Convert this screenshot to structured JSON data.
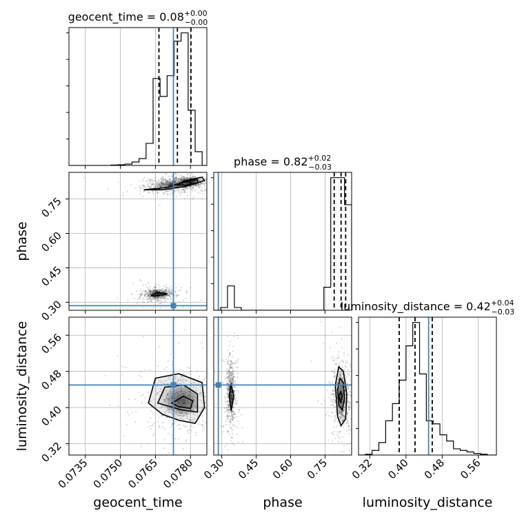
{
  "chart_data": {
    "type": "corner",
    "colors": {
      "truth": "#4682b4",
      "histogram": "#000000",
      "contour": "#000000",
      "grid": "#b0b0b0"
    },
    "parameters": [
      {
        "name": "geocent_time",
        "xlabel": "geocent_time",
        "title": {
          "prefix": "geocent_time = 0.08",
          "plus": "+0.00",
          "minus": "−0.00"
        },
        "range": [
          0.0728,
          0.0787
        ],
        "ticks": [
          0.0735,
          0.075,
          0.0765,
          0.078
        ],
        "tick_labels": [
          "0.0735",
          "0.0750",
          "0.0765",
          "0.0780"
        ],
        "truth": 0.07727,
        "quantiles": [
          0.07665,
          0.07744,
          0.07802
        ],
        "hist_edges": [
          0.0728,
          0.0731,
          0.0734,
          0.0737,
          0.074,
          0.0743,
          0.0746,
          0.0749,
          0.0752,
          0.0755,
          0.0758,
          0.0761,
          0.0764,
          0.0767,
          0.077,
          0.0773,
          0.0776,
          0.0779,
          0.0782,
          0.0785,
          0.0787
        ],
        "hist_counts": [
          0,
          0,
          0,
          0,
          0,
          0,
          0.3,
          0.5,
          1.0,
          2.5,
          5.0,
          16.0,
          63.0,
          50.0,
          65.0,
          90.0,
          96.0,
          40.0,
          10.0,
          0
        ]
      },
      {
        "name": "phase",
        "xlabel": "phase",
        "ylabel": "phase",
        "title": {
          "prefix": "phase = 0.82",
          "plus": "+0.02",
          "minus": "−0.03"
        },
        "range": [
          0.265,
          0.866
        ],
        "ticks": [
          0.3,
          0.45,
          0.6,
          0.75
        ],
        "tick_labels": [
          "0.30",
          "0.45",
          "0.60",
          "0.75"
        ],
        "truth": 0.285,
        "quantiles": [
          0.79,
          0.82,
          0.84
        ],
        "hist_edges": [
          0.265,
          0.295,
          0.325,
          0.355,
          0.385,
          0.415,
          0.445,
          0.475,
          0.505,
          0.535,
          0.565,
          0.595,
          0.625,
          0.655,
          0.685,
          0.715,
          0.745,
          0.775,
          0.805,
          0.835,
          0.866
        ],
        "hist_counts": [
          0,
          2,
          18,
          2,
          0,
          0,
          0,
          0,
          0,
          0,
          0,
          0,
          0,
          0,
          0,
          0,
          17,
          98,
          98,
          78
        ]
      },
      {
        "name": "luminosity_distance",
        "xlabel": "luminosity_distance",
        "ylabel": "luminosity_distance",
        "title": {
          "prefix": "luminosity_distance = 0.42",
          "plus": "+0.04",
          "minus": "−0.03"
        },
        "range": [
          0.295,
          0.6
        ],
        "ticks": [
          0.32,
          0.4,
          0.48,
          0.56
        ],
        "tick_labels": [
          "0.32",
          "0.40",
          "0.48",
          "0.56"
        ],
        "truth": 0.45,
        "quantiles": [
          0.385,
          0.42,
          0.458
        ],
        "hist_edges": [
          0.295,
          0.31,
          0.325,
          0.34,
          0.355,
          0.37,
          0.385,
          0.4,
          0.415,
          0.43,
          0.445,
          0.46,
          0.475,
          0.49,
          0.505,
          0.52,
          0.535,
          0.55,
          0.565,
          0.58,
          0.6
        ],
        "hist_counts": [
          0,
          0.5,
          3,
          8,
          22,
          33,
          48,
          70,
          85,
          52,
          22,
          20,
          13,
          9,
          4,
          3,
          2,
          1,
          0.5,
          0
        ]
      }
    ],
    "panels_2d": [
      {
        "x_param": "geocent_time",
        "y_param": "phase",
        "clusters": [
          {
            "cx": 0.0772,
            "cy": 0.81,
            "sx": 0.0006,
            "sy": 0.015
          },
          {
            "cx": 0.0779,
            "cy": 0.825,
            "sx": 0.0003,
            "sy": 0.01
          },
          {
            "cx": 0.0766,
            "cy": 0.335,
            "sx": 0.0003,
            "sy": 0.012
          }
        ],
        "contours": [
          [
            [
              0.076,
              0.79
            ],
            [
              0.077,
              0.8
            ],
            [
              0.078,
              0.835
            ],
            [
              0.0785,
              0.845
            ],
            [
              0.0786,
              0.83
            ],
            [
              0.0778,
              0.805
            ],
            [
              0.0768,
              0.79
            ],
            [
              0.076,
              0.79
            ]
          ],
          [
            [
              0.0774,
              0.812
            ],
            [
              0.0779,
              0.83
            ],
            [
              0.0783,
              0.835
            ],
            [
              0.0783,
              0.82
            ],
            [
              0.0778,
              0.81
            ],
            [
              0.0774,
              0.812
            ]
          ],
          [
            [
              0.0763,
              0.328
            ],
            [
              0.0766,
              0.343
            ],
            [
              0.077,
              0.337
            ],
            [
              0.0766,
              0.327
            ],
            [
              0.0763,
              0.328
            ]
          ]
        ]
      },
      {
        "x_param": "geocent_time",
        "y_param": "luminosity_distance",
        "clusters": [
          {
            "cx": 0.0776,
            "cy": 0.415,
            "sx": 0.0007,
            "sy": 0.035
          }
        ],
        "contours": [
          [
            [
              0.0762,
              0.41
            ],
            [
              0.0765,
              0.465
            ],
            [
              0.0775,
              0.475
            ],
            [
              0.0785,
              0.455
            ],
            [
              0.0786,
              0.4
            ],
            [
              0.0782,
              0.365
            ],
            [
              0.0775,
              0.372
            ],
            [
              0.0768,
              0.385
            ],
            [
              0.0762,
              0.41
            ]
          ],
          [
            [
              0.0766,
              0.41
            ],
            [
              0.0769,
              0.445
            ],
            [
              0.0777,
              0.45
            ],
            [
              0.0783,
              0.43
            ],
            [
              0.0783,
              0.39
            ],
            [
              0.0776,
              0.395
            ],
            [
              0.0766,
              0.41
            ]
          ],
          [
            [
              0.0772,
              0.41
            ],
            [
              0.0777,
              0.425
            ],
            [
              0.0781,
              0.415
            ],
            [
              0.078,
              0.398
            ],
            [
              0.0775,
              0.402
            ],
            [
              0.0772,
              0.41
            ]
          ]
        ]
      },
      {
        "x_param": "phase",
        "y_param": "luminosity_distance",
        "clusters": [
          {
            "cx": 0.82,
            "cy": 0.425,
            "sx": 0.02,
            "sy": 0.04
          },
          {
            "cx": 0.34,
            "cy": 0.43,
            "sx": 0.01,
            "sy": 0.035
          }
        ],
        "contours": [
          [
            [
              0.795,
              0.45
            ],
            [
              0.81,
              0.49
            ],
            [
              0.83,
              0.48
            ],
            [
              0.845,
              0.43
            ],
            [
              0.84,
              0.375
            ],
            [
              0.82,
              0.36
            ],
            [
              0.805,
              0.38
            ],
            [
              0.795,
              0.45
            ]
          ],
          [
            [
              0.805,
              0.44
            ],
            [
              0.815,
              0.465
            ],
            [
              0.83,
              0.455
            ],
            [
              0.835,
              0.42
            ],
            [
              0.825,
              0.395
            ],
            [
              0.81,
              0.405
            ],
            [
              0.805,
              0.44
            ]
          ],
          [
            [
              0.81,
              0.425
            ],
            [
              0.817,
              0.435
            ],
            [
              0.825,
              0.425
            ],
            [
              0.818,
              0.412
            ],
            [
              0.81,
              0.425
            ]
          ],
          [
            [
              0.34,
              0.452
            ],
            [
              0.352,
              0.425
            ],
            [
              0.341,
              0.393
            ],
            [
              0.333,
              0.425
            ],
            [
              0.34,
              0.452
            ]
          ]
        ]
      }
    ]
  }
}
